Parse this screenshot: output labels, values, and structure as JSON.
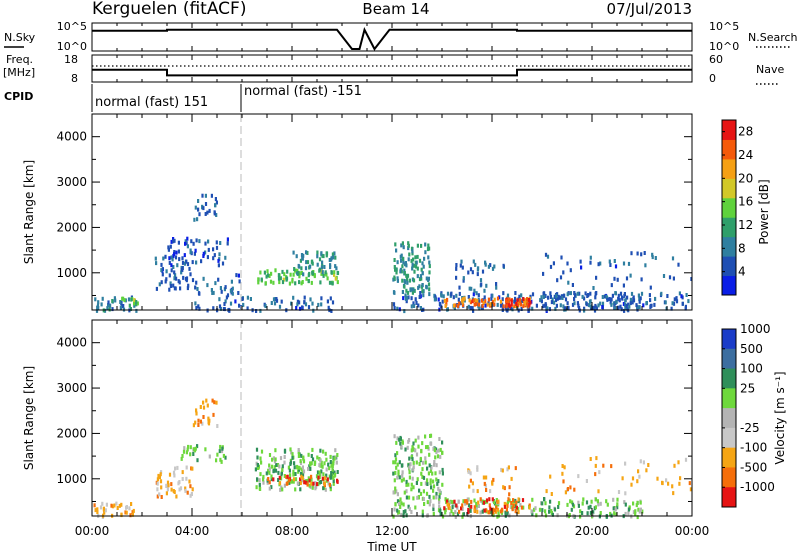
{
  "header": {
    "station": "Kerguelen (fitACF)",
    "beam": "Beam 14",
    "date": "07/Jul/2013"
  },
  "panels": {
    "nsky_label": "N.Sky",
    "nsearch_label": "N.Search",
    "freq_label": "Freq.",
    "freq_unit": "[MHz]",
    "nave_label": "Nave",
    "cpid_label": "CPID",
    "nsky_ticks": [
      "10^5",
      "10^0"
    ],
    "nsearch_ticks": [
      "10^5",
      "10^0"
    ],
    "freq_ticks": [
      "18",
      "8"
    ],
    "nave_ticks": [
      "60",
      "0"
    ],
    "cpid_segments": [
      {
        "label": "normal (fast) 151",
        "start_hour": 0,
        "end_hour": 6
      },
      {
        "label": "normal (fast) -151",
        "start_hour": 6,
        "end_hour": 24
      }
    ]
  },
  "chart_data": [
    {
      "type": "line",
      "name": "N.Sky / N.Search",
      "x": [
        0,
        3,
        3,
        9.8,
        10.4,
        10.7,
        10.9,
        11.3,
        11.9,
        17,
        17,
        24
      ],
      "y": [
        3.8,
        3.8,
        4.0,
        4.0,
        0,
        0,
        4.0,
        0,
        4.0,
        4.0,
        3.8,
        3.8
      ],
      "ylim": [
        0,
        5
      ],
      "ticks": [
        "10^5",
        "10^0"
      ]
    },
    {
      "type": "line",
      "name": "Freq. / Nave",
      "x": [
        0,
        3,
        3,
        9.8,
        11.9,
        17,
        17,
        24
      ],
      "y": [
        12.5,
        12.5,
        10.0,
        10.0,
        10.0,
        10.0,
        12.5,
        12.5
      ],
      "ylim": [
        8,
        18
      ],
      "ticks": [
        "18",
        "8"
      ]
    },
    {
      "type": "heatmap",
      "title": "",
      "xlabel": "",
      "ylabel": "Slant Range [km]",
      "xlim": [
        0,
        24
      ],
      "ylim": [
        180,
        4500
      ],
      "yticks": [
        1000,
        2000,
        3000,
        4000
      ],
      "colorbar_label": "Power [dB]",
      "colorbar_ticks": [
        4,
        8,
        12,
        16,
        20,
        24,
        28
      ],
      "colorbar_range": [
        0,
        30
      ],
      "regions": [
        {
          "x": [
            0.0,
            1.8
          ],
          "y": [
            200,
            500
          ],
          "density": 0.55,
          "value": 8
        },
        {
          "x": [
            1.0,
            1.8
          ],
          "y": [
            350,
            500
          ],
          "density": 0.6,
          "value": 14
        },
        {
          "x": [
            2.5,
            4.0
          ],
          "y": [
            600,
            1400
          ],
          "density": 0.35,
          "value": 6
        },
        {
          "x": [
            3.0,
            5.5
          ],
          "y": [
            1200,
            1800
          ],
          "density": 0.3,
          "value": 5
        },
        {
          "x": [
            4.0,
            5.0
          ],
          "y": [
            2200,
            2800
          ],
          "density": 0.3,
          "value": 6
        },
        {
          "x": [
            4.0,
            6.0
          ],
          "y": [
            200,
            1000
          ],
          "density": 0.25,
          "value": 6
        },
        {
          "x": [
            6.5,
            9.8
          ],
          "y": [
            800,
            1100
          ],
          "density": 0.6,
          "value": 14
        },
        {
          "x": [
            8.0,
            9.8
          ],
          "y": [
            1000,
            1500
          ],
          "density": 0.5,
          "value": 10
        },
        {
          "x": [
            6.0,
            9.8
          ],
          "y": [
            200,
            500
          ],
          "density": 0.3,
          "value": 6
        },
        {
          "x": [
            12.0,
            13.5
          ],
          "y": [
            600,
            1700
          ],
          "density": 0.55,
          "value": 10
        },
        {
          "x": [
            12.0,
            22.0
          ],
          "y": [
            200,
            600
          ],
          "density": 0.45,
          "value": 6
        },
        {
          "x": [
            14.0,
            17.5
          ],
          "y": [
            300,
            480
          ],
          "density": 0.8,
          "value": 24
        },
        {
          "x": [
            16.5,
            17.5
          ],
          "y": [
            300,
            480
          ],
          "density": 0.8,
          "value": 28
        },
        {
          "x": [
            14.5,
            16.5
          ],
          "y": [
            600,
            1300
          ],
          "density": 0.2,
          "value": 6
        },
        {
          "x": [
            18.0,
            24.0
          ],
          "y": [
            250,
            600
          ],
          "density": 0.35,
          "value": 6
        },
        {
          "x": [
            18.0,
            24.0
          ],
          "y": [
            700,
            1500
          ],
          "density": 0.08,
          "value": 6
        }
      ]
    },
    {
      "type": "heatmap",
      "title": "",
      "xlabel": "Time UT",
      "ylabel": "Slant Range [km]",
      "xlim": [
        0,
        24
      ],
      "ylim": [
        180,
        4500
      ],
      "yticks": [
        1000,
        2000,
        3000,
        4000
      ],
      "xticks": [
        "00:00",
        "04:00",
        "08:00",
        "12:00",
        "16:00",
        "20:00",
        "00:00"
      ],
      "colorbar_label": "Velocity [m s⁻¹]",
      "colorbar_ticks": [
        "1000",
        "500",
        "100",
        "25",
        "-25",
        "-100",
        "-500",
        "-1000"
      ],
      "regions": [
        {
          "x": [
            0.0,
            1.8
          ],
          "y": [
            200,
            500
          ],
          "density": 0.5,
          "value": "-100"
        },
        {
          "x": [
            2.5,
            4.0
          ],
          "y": [
            600,
            1300
          ],
          "density": 0.35,
          "value": "-100"
        },
        {
          "x": [
            3.5,
            5.5
          ],
          "y": [
            1400,
            1800
          ],
          "density": 0.3,
          "value": "25"
        },
        {
          "x": [
            4.0,
            5.0
          ],
          "y": [
            2200,
            2800
          ],
          "density": 0.3,
          "value": "-100"
        },
        {
          "x": [
            6.5,
            9.8
          ],
          "y": [
            800,
            1700
          ],
          "density": 0.55,
          "value": "25"
        },
        {
          "x": [
            7.0,
            9.8
          ],
          "y": [
            900,
            1100
          ],
          "density": 0.5,
          "value": "-500"
        },
        {
          "x": [
            12.0,
            14.0
          ],
          "y": [
            600,
            2000
          ],
          "density": 0.45,
          "value": "25"
        },
        {
          "x": [
            12.0,
            22.0
          ],
          "y": [
            200,
            600
          ],
          "density": 0.45,
          "value": "25"
        },
        {
          "x": [
            14.0,
            17.5
          ],
          "y": [
            300,
            600
          ],
          "density": 0.5,
          "value": "-500"
        },
        {
          "x": [
            15.0,
            17.0
          ],
          "y": [
            700,
            1300
          ],
          "density": 0.2,
          "value": "-100"
        },
        {
          "x": [
            18.0,
            24.0
          ],
          "y": [
            700,
            1500
          ],
          "density": 0.08,
          "value": "-100"
        }
      ]
    }
  ],
  "colors": {
    "power_scale": [
      "#0a1ee6",
      "#1f4fb3",
      "#2f7fa0",
      "#2f9f6a",
      "#5fd23c",
      "#d2c828",
      "#f5a014",
      "#f55a0a",
      "#e61414"
    ],
    "velocity_scale": [
      "#1a3cc8",
      "#3c6ea0",
      "#2f8f5a",
      "#6ed83c",
      "#b4b4b4",
      "#c8c8c8",
      "#f5a514",
      "#f56e0a",
      "#e61414"
    ]
  }
}
